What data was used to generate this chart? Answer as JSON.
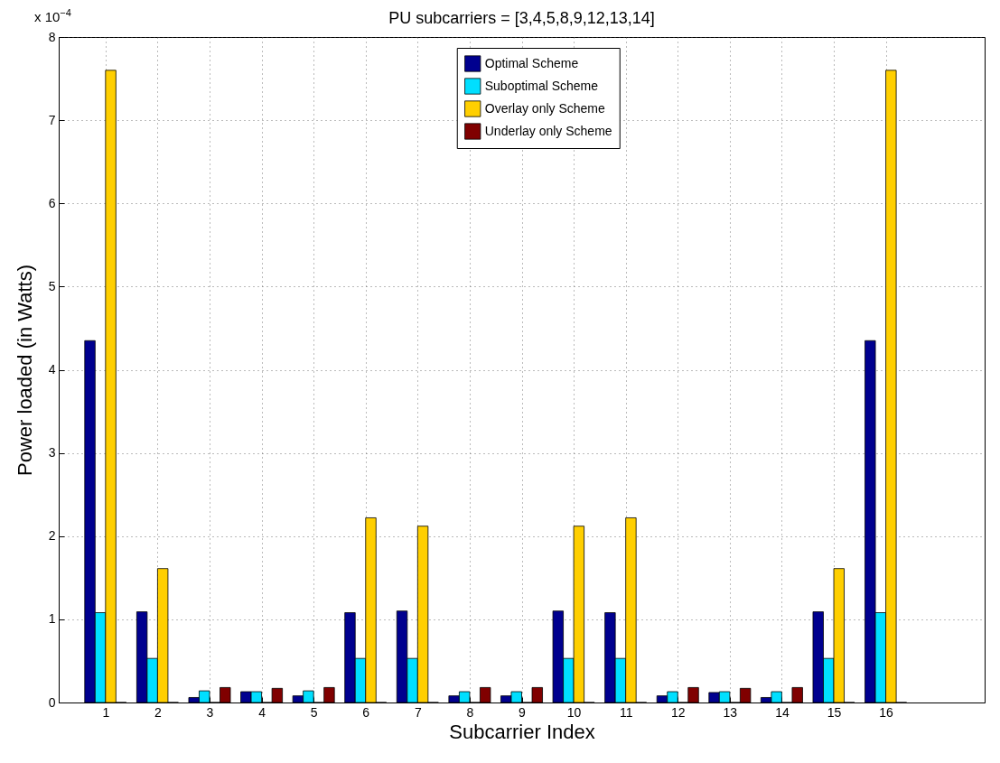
{
  "chart_data": {
    "type": "bar",
    "title": "PU subcarriers = [3,4,5,8,9,12,13,14]",
    "xlabel": "Subcarrier Index",
    "ylabel": "Power loaded (in Watts)",
    "annotations": [
      "x 10$^{−4}$"
    ],
    "x": [
      1,
      2,
      3,
      4,
      5,
      6,
      7,
      8,
      9,
      10,
      11,
      12,
      13,
      14,
      15,
      16
    ],
    "xlim": [
      0.1,
      17.9
    ],
    "xticks": [
      1,
      2,
      3,
      4,
      5,
      6,
      7,
      8,
      9,
      10,
      11,
      12,
      13,
      14,
      15,
      16
    ],
    "ylim": [
      0,
      8
    ],
    "yticks": [
      0,
      1,
      2,
      3,
      4,
      5,
      6,
      7,
      8
    ],
    "grid": true,
    "legend": "top",
    "series": [
      {
        "name": "Optimal Scheme",
        "color": "#00008f",
        "values": [
          4.35,
          1.09,
          0.06,
          0.13,
          0.08,
          1.08,
          1.1,
          0.08,
          0.08,
          1.1,
          1.08,
          0.08,
          0.12,
          0.06,
          1.09,
          4.35
        ]
      },
      {
        "name": "Suboptimal Scheme",
        "color": "#00dfff",
        "values": [
          1.08,
          0.53,
          0.14,
          0.13,
          0.14,
          0.53,
          0.53,
          0.13,
          0.13,
          0.53,
          0.53,
          0.13,
          0.13,
          0.13,
          0.53,
          1.08
        ]
      },
      {
        "name": "Overlay only Scheme",
        "color": "#ffcf00",
        "values": [
          7.6,
          1.61,
          0,
          0,
          0,
          2.22,
          2.12,
          0,
          0,
          2.12,
          2.22,
          0,
          0,
          0,
          1.61,
          7.6
        ]
      },
      {
        "name": "Underlay only Scheme",
        "color": "#800000",
        "values": [
          0,
          0,
          0.18,
          0.17,
          0.18,
          0,
          0,
          0.18,
          0.18,
          0,
          0,
          0.18,
          0.17,
          0.18,
          0,
          0
        ]
      }
    ]
  }
}
